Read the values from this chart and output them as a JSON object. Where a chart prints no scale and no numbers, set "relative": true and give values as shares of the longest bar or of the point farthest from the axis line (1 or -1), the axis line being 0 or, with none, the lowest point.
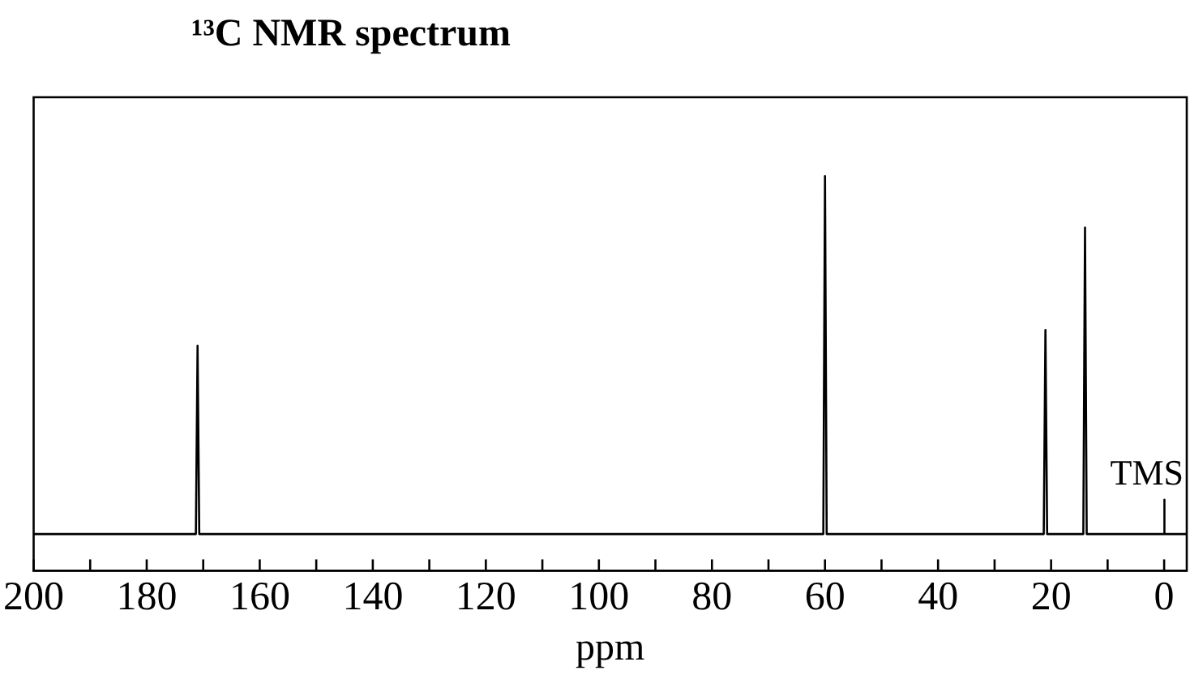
{
  "chart_data": {
    "type": "line",
    "title": "¹³C NMR spectrum",
    "xlabel": "ppm",
    "relative": true,
    "color": "#000000",
    "x": [
      200,
      171.3,
      171,
      170.7,
      60.3,
      60,
      59.7,
      21.3,
      21,
      20.7,
      14.3,
      14,
      13.7,
      0.1,
      0,
      0,
      -0.1,
      -4
    ],
    "values": [
      0.093,
      0.093,
      0.57,
      0.093,
      0.093,
      1,
      0.093,
      0.093,
      0.61,
      0.093,
      0.093,
      0.87,
      0.093,
      0.093,
      0.093,
      0.18,
      0.093,
      0.093
    ],
    "xlim": [
      200,
      -4
    ],
    "xticks": [
      200,
      {
        "value": 190,
        "label": null
      },
      180,
      {
        "value": 170,
        "label": null
      },
      160,
      {
        "value": 150,
        "label": null
      },
      140,
      {
        "value": 130,
        "label": null
      },
      120,
      {
        "value": 110,
        "label": null
      },
      100,
      {
        "value": 90,
        "label": null
      },
      80,
      {
        "value": 70,
        "label": null
      },
      60,
      {
        "value": 50,
        "label": null
      },
      40,
      {
        "value": 30,
        "label": null
      },
      20,
      {
        "value": 10,
        "label": null
      },
      0
    ],
    "annotations": [
      {
        "text": "TMS",
        "x": 0,
        "y": 0.18
      }
    ],
    "legend": false
  }
}
